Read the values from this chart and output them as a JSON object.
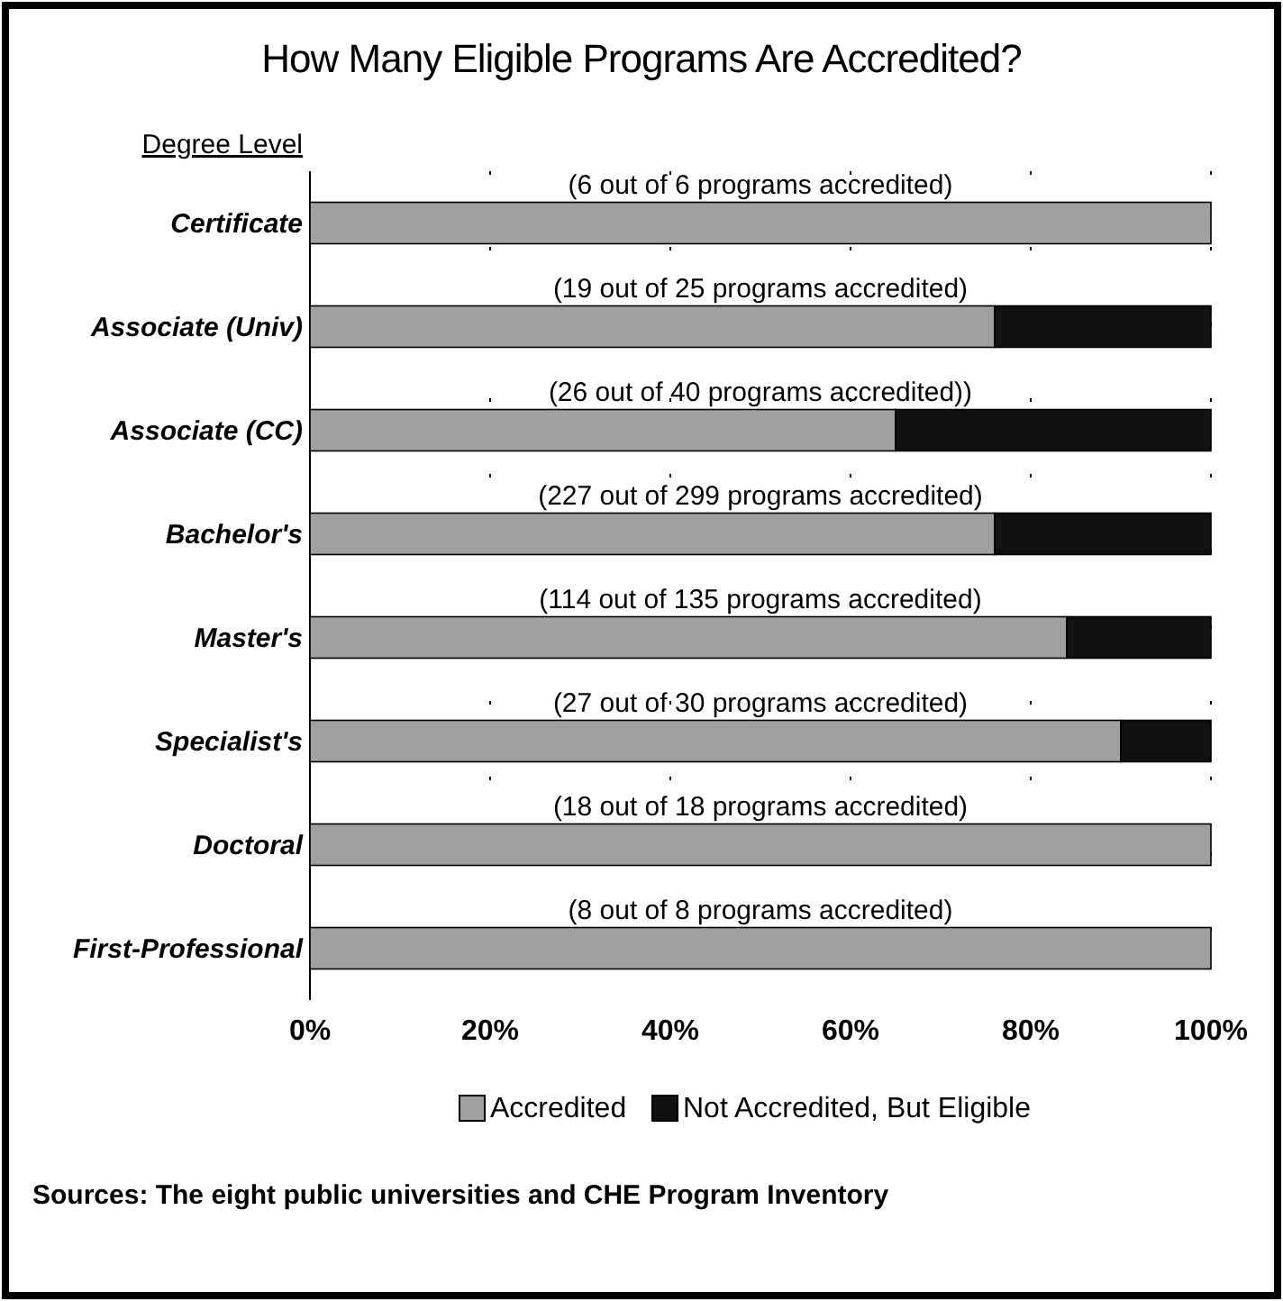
{
  "chart_data": {
    "type": "bar",
    "orientation": "horizontal",
    "stacked": true,
    "title": "How Many Eligible Programs Are Accredited?",
    "ylabel": "Degree Level",
    "categories": [
      "Certificate",
      "Associate  (Univ)",
      "Associate (CC)",
      "Bachelor's",
      "Master's",
      "Specialist's",
      "Doctoral",
      "First-Professional"
    ],
    "series": [
      {
        "name": "Accredited",
        "color": "#a0a0a0",
        "values": [
          100,
          76,
          65,
          76,
          84,
          90,
          100,
          100
        ]
      },
      {
        "name": "Not Accredited, But Eligible",
        "color": "#111111",
        "values": [
          0,
          24,
          35,
          24,
          16,
          10,
          0,
          0
        ]
      }
    ],
    "xlim": [
      0,
      100
    ],
    "xticks": [
      {
        "value": 0,
        "label": "0%"
      },
      {
        "value": 20,
        "label": "20%"
      },
      {
        "value": 40,
        "label": "40%"
      },
      {
        "value": 60,
        "label": "60%"
      },
      {
        "value": 80,
        "label": "80%"
      },
      {
        "value": 100,
        "label": "100%"
      }
    ],
    "grid": "x",
    "legend": "bottom",
    "annotations": [
      "(6 out of 6 programs accredited)",
      "(19 out of 25 programs accredited)",
      "(26 out of 40 programs accredited))",
      "(227 out of 299 programs accredited)",
      "(114 out of 135 programs accredited)",
      "(27 out of 30 programs accredited)",
      "(18 out of 18 programs accredited)",
      "(8 out of 8 programs accredited)",
      "Sources: The eight public universities and CHE Program Inventory"
    ]
  }
}
